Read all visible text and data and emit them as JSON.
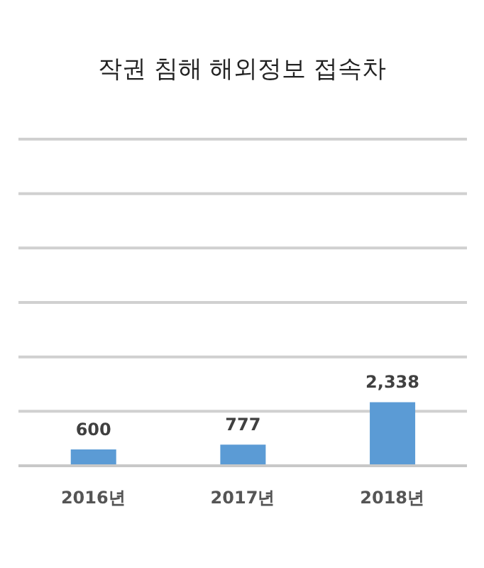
{
  "chart_data": {
    "type": "bar",
    "title": "작권 침해 해외정보 접속차",
    "categories": [
      "2016년",
      "2017년",
      "2018년"
    ],
    "values": [
      600,
      777,
      2338
    ],
    "value_labels": [
      "600",
      "777",
      "2,338"
    ],
    "color": "#5b9bd5",
    "ylim": [
      0,
      12000
    ],
    "yticks": [
      {
        "value": 0,
        "label": null
      },
      {
        "value": 2000,
        "label": null
      },
      {
        "value": 4000,
        "label": null
      },
      {
        "value": 6000,
        "label": null
      },
      {
        "value": 8000,
        "label": null
      },
      {
        "value": 10000,
        "label": null
      },
      {
        "value": 12000,
        "label": null
      }
    ],
    "grid": "y",
    "tick_labels": "x"
  }
}
